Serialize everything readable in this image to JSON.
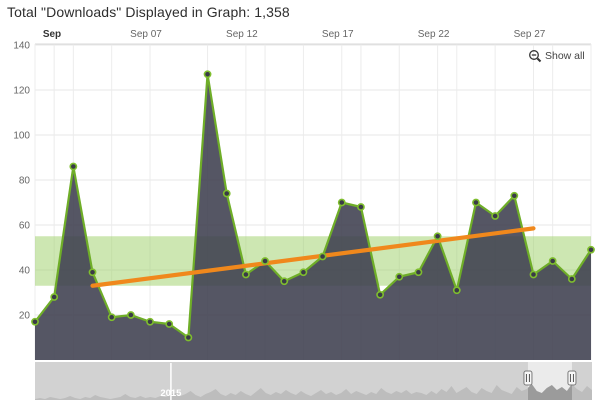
{
  "title": "Total \"Downloads\" Displayed in Graph: 1,358",
  "toolbar": {
    "show_all_label": "Show all",
    "zoom_out_icon": "magnifier-minus-icon"
  },
  "chart_data": {
    "type": "area",
    "title": "Total \"Downloads\" Displayed in Graph: 1,358",
    "total_displayed": "1,358",
    "x_unit": "days of September 2015",
    "x_ticks": [
      {
        "day": 1,
        "label": "Sep",
        "bold": true
      },
      {
        "day": 7,
        "label": "Sep 07",
        "bold": false
      },
      {
        "day": 12,
        "label": "Sep 12",
        "bold": false
      },
      {
        "day": 17,
        "label": "Sep 17",
        "bold": false
      },
      {
        "day": 22,
        "label": "Sep 22",
        "bold": false
      },
      {
        "day": 27,
        "label": "Sep 27",
        "bold": false
      }
    ],
    "y_ticks": [
      140,
      120,
      100,
      80,
      60,
      40,
      20
    ],
    "ylim": [
      0,
      140
    ],
    "grid_days": [
      2,
      3,
      5,
      7,
      10,
      12,
      13,
      15,
      17,
      18,
      20,
      22,
      23,
      25,
      27,
      28,
      30
    ],
    "series": [
      {
        "name": "Downloads",
        "start_day": 1,
        "values": [
          17,
          28,
          86,
          39,
          19,
          20,
          17,
          16,
          10,
          127,
          74,
          38,
          44,
          35,
          39,
          46,
          70,
          68,
          29,
          37,
          39,
          55,
          31,
          70,
          64,
          73,
          38,
          44,
          36,
          49
        ]
      }
    ],
    "plot_band": {
      "from": 33,
      "to": 55
    },
    "trend_line": {
      "from": {
        "day": 4,
        "value": 33
      },
      "to": {
        "day": 27,
        "value": 58.5
      }
    },
    "legend": "none",
    "grid": "on"
  },
  "navigator": {
    "year_label": "2015",
    "year_divider_pos": 0.244,
    "window_start": 0.885,
    "window_end": 0.964,
    "spark": [
      1,
      2,
      1,
      3,
      2,
      1,
      2,
      4,
      2,
      1,
      3,
      2,
      5,
      3,
      2,
      1,
      2,
      3,
      6,
      3,
      2,
      4,
      2,
      3,
      2,
      4,
      3,
      5,
      7,
      4,
      6,
      9,
      5,
      3,
      6,
      8,
      11,
      6,
      4,
      7,
      5,
      9,
      6,
      4,
      8,
      12,
      7,
      5,
      8,
      6,
      10,
      7,
      5,
      9,
      6,
      4,
      7,
      10,
      6,
      8,
      5,
      7,
      11,
      6,
      9,
      7,
      5,
      8,
      6,
      12,
      8,
      6,
      9,
      7,
      10,
      6,
      8,
      7,
      5,
      9,
      6,
      11,
      8,
      14,
      7,
      10,
      13,
      8,
      6,
      12,
      9,
      7,
      15,
      10,
      8,
      6,
      13,
      9,
      11,
      16,
      9,
      7,
      12,
      15,
      10,
      13,
      9,
      16,
      11,
      8,
      14,
      10
    ]
  },
  "colors": {
    "line": "#6fae28",
    "area": "rgba(62,63,78,0.88)",
    "marker_fill": "#3a3b47",
    "marker_stroke": "#7fbe2e",
    "band": "rgba(155,207,101,0.5)",
    "trend": "#f0881c",
    "grid": "#e7e7e7",
    "grid_v": "#ececec",
    "border": "#dadada",
    "axis_text": "#666666",
    "axis_text_bold": "#333333",
    "nav_bg": "#d2d2d2",
    "nav_spark": "#bdbdbd",
    "nav_spark_sel": "#9b9b9b",
    "nav_window": "rgba(255,255,255,0.55)",
    "handle_fill": "#f6f6f6",
    "handle_stroke": "#7a7a7a",
    "year_text": "#ffffff"
  }
}
